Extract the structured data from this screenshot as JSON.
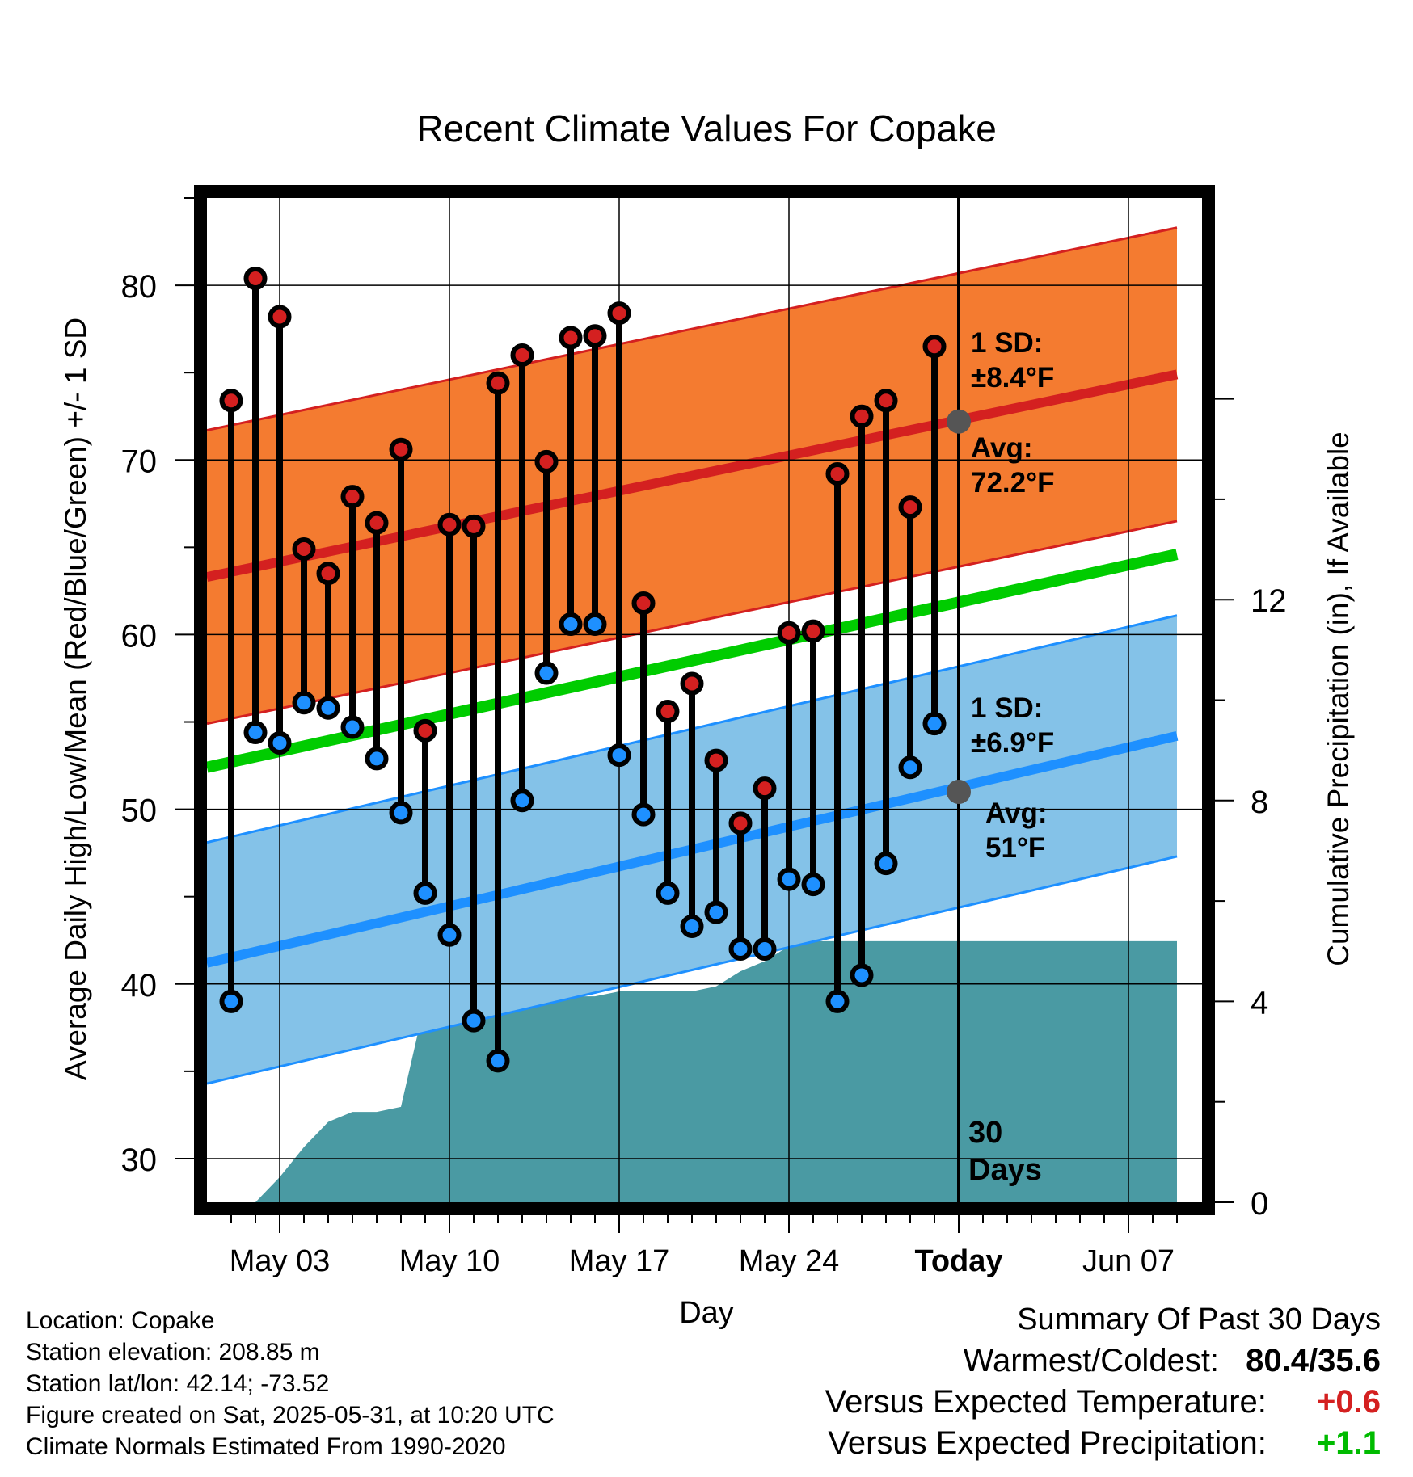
{
  "chart_data": {
    "type": "line",
    "title": "Recent Climate Values For Copake",
    "xlabel": "Day",
    "ylabel": "Average Daily High/Low/Mean (Red/Blue/Green) +/- 1 SD",
    "y2label": "Cumulative Precipitation (in), If Available",
    "ylim": [
      27.5,
      85
    ],
    "y2lim": [
      0,
      20
    ],
    "yticks": [
      30,
      40,
      50,
      60,
      70,
      80
    ],
    "y2ticks": [
      0,
      4,
      8,
      12
    ],
    "xticks": [
      "May 03",
      "May 10",
      "May 17",
      "May 24",
      "Today",
      "Jun 07"
    ],
    "xtick_days": [
      3,
      10,
      17,
      24,
      31,
      38
    ],
    "xlim": [
      0,
      40
    ],
    "grid": true,
    "today_day": 31,
    "today_label_1": "30",
    "today_label_2": "Days",
    "normal_high": {
      "start": 63.3,
      "end": 74.9,
      "sd": 8.4,
      "avg_today": 72.2,
      "sd_label": "1 SD:",
      "sd_text": "±8.4°F",
      "avg_label": "Avg:",
      "avg_text": "72.2°F"
    },
    "normal_low": {
      "start": 41.2,
      "end": 54.2,
      "sd": 6.9,
      "avg_today": 51,
      "sd_label": "1 SD:",
      "sd_text": "±6.9°F",
      "avg_label": "Avg:",
      "avg_text": "51°F"
    },
    "normal_mean": {
      "start": 52.4,
      "end": 64.6
    },
    "days": [
      1,
      2,
      3,
      4,
      5,
      6,
      7,
      8,
      9,
      10,
      11,
      12,
      13,
      14,
      15,
      16,
      17,
      18,
      19,
      20,
      21,
      22,
      23,
      24,
      25,
      26,
      27,
      28,
      29,
      30
    ],
    "highs": [
      73.4,
      80.4,
      78.2,
      64.9,
      63.5,
      67.9,
      66.4,
      70.6,
      54.5,
      66.3,
      66.2,
      74.4,
      76.0,
      69.9,
      77.0,
      77.1,
      78.4,
      61.8,
      55.6,
      57.2,
      52.8,
      49.2,
      51.2,
      60.1,
      60.2,
      69.2,
      72.5,
      73.4,
      67.3,
      76.5
    ],
    "lows": [
      39.0,
      54.4,
      53.8,
      56.1,
      55.8,
      54.7,
      52.9,
      49.8,
      45.2,
      42.8,
      37.9,
      35.6,
      50.5,
      57.8,
      60.6,
      60.6,
      53.1,
      49.7,
      45.2,
      43.3,
      44.1,
      42.0,
      42.0,
      46.0,
      45.7,
      39.0,
      40.5,
      46.9,
      52.4,
      54.9
    ],
    "precip_cumulative": {
      "days": [
        0,
        1,
        2,
        3,
        4,
        5,
        6,
        7,
        8,
        9,
        10,
        11,
        12,
        13,
        14,
        15,
        16,
        17,
        18,
        19,
        20,
        21,
        22,
        23,
        24,
        25,
        26,
        27,
        28,
        29,
        30,
        31,
        40
      ],
      "values": [
        0,
        0,
        0,
        0.5,
        1.1,
        1.6,
        1.8,
        1.8,
        1.9,
        4.0,
        4.1,
        4.1,
        4.1,
        4.1,
        4.1,
        4.1,
        4.1,
        4.2,
        4.2,
        4.2,
        4.2,
        4.3,
        4.6,
        4.8,
        5.1,
        5.2,
        5.2,
        5.2,
        5.2,
        5.2,
        5.2,
        5.2,
        5.2
      ]
    },
    "colors": {
      "high_band": "#f47b30",
      "high_line": "#d42020",
      "low_band": "#84c2e8",
      "low_line": "#1e90ff",
      "mean_line": "#00cc00",
      "precip": "#4a9aa3",
      "high_dot": "#d42020",
      "low_dot": "#1e90ff",
      "avg_dot": "#555555",
      "label_gray": "#595959"
    }
  },
  "info": {
    "location": "Location: Copake",
    "elevation": "Station elevation: 208.85 m",
    "latlon": "Station lat/lon: 42.14; -73.52",
    "created": "Figure created on Sat, 2025-05-31, at 10:20 UTC",
    "normals": "Climate Normals Estimated From 1990-2020"
  },
  "summary": {
    "title": "Summary Of Past 30 Days",
    "warmest_label": "Warmest/Coldest:",
    "warmest_value": "80.4/35.6",
    "temp_label": "Versus Expected Temperature:",
    "temp_value": "+0.6",
    "temp_color": "#d42020",
    "precip_label": "Versus Expected Precipitation:",
    "precip_value": "+1.1",
    "precip_color": "#00bb00"
  }
}
